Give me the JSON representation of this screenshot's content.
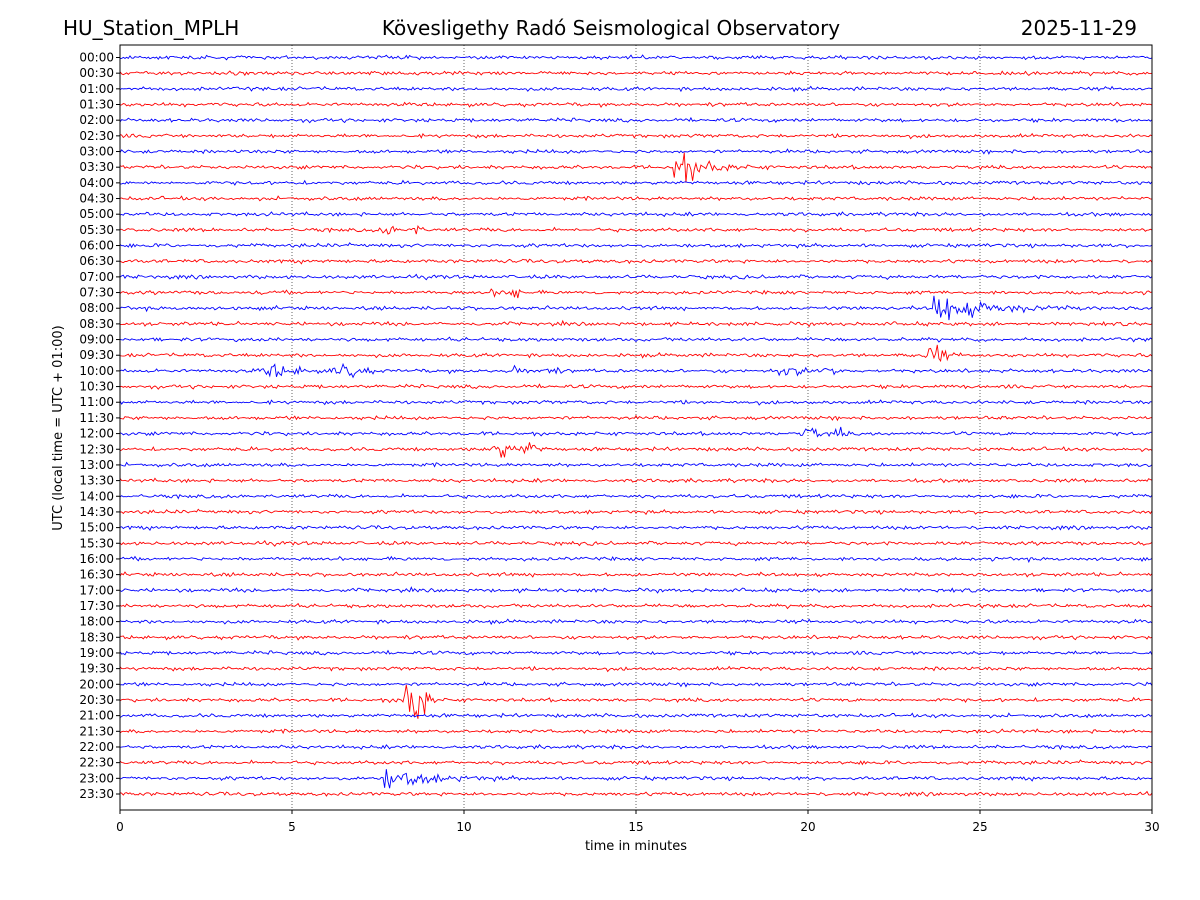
{
  "header": {
    "station": "HU_Station_MPLH",
    "observatory": "Kövesligethy Radó Seismological Observatory",
    "date": "2025-11-29"
  },
  "chart_data": {
    "type": "line",
    "title": "Kövesligethy Radó Seismological Observatory",
    "xlabel": "time in minutes",
    "ylabel": "UTC (local time = UTC + 01:00)",
    "xlim": [
      0,
      30
    ],
    "x_ticks": [
      0,
      5,
      10,
      15,
      20,
      25,
      30
    ],
    "grid": "vertical dotted lines at each x tick",
    "row_labels": [
      "00:00",
      "00:30",
      "01:00",
      "01:30",
      "02:00",
      "02:30",
      "03:00",
      "03:30",
      "04:00",
      "04:30",
      "05:00",
      "05:30",
      "06:00",
      "06:30",
      "07:00",
      "07:30",
      "08:00",
      "08:30",
      "09:00",
      "09:30",
      "10:00",
      "10:30",
      "11:00",
      "11:30",
      "12:00",
      "12:30",
      "13:00",
      "13:30",
      "14:00",
      "14:30",
      "15:00",
      "15:30",
      "16:00",
      "16:30",
      "17:00",
      "17:30",
      "18:00",
      "18:30",
      "19:00",
      "19:30",
      "20:00",
      "20:30",
      "21:00",
      "21:30",
      "22:00",
      "22:30",
      "23:00",
      "23:30"
    ],
    "colors": [
      "#0000ff",
      "#ff0000"
    ],
    "noise_amplitude": 1.0,
    "events": [
      {
        "row": 7,
        "minute": 16.1,
        "amplitude": 12,
        "duration": 1.8,
        "kind": "quake"
      },
      {
        "row": 11,
        "minute": 7.8,
        "amplitude": 3.5,
        "duration": 0.3,
        "kind": "burst"
      },
      {
        "row": 11,
        "minute": 8.6,
        "amplitude": 3.0,
        "duration": 0.3,
        "kind": "burst"
      },
      {
        "row": 15,
        "minute": 11.0,
        "amplitude": 2.5,
        "duration": 0.3,
        "kind": "burst"
      },
      {
        "row": 15,
        "minute": 11.5,
        "amplitude": 2.5,
        "duration": 0.3,
        "kind": "burst"
      },
      {
        "row": 16,
        "minute": 23.7,
        "amplitude": 9,
        "duration": 3.5,
        "kind": "quake"
      },
      {
        "row": 19,
        "minute": 23.7,
        "amplitude": 6,
        "duration": 0.5,
        "kind": "burst"
      },
      {
        "row": 20,
        "minute": 4.5,
        "amplitude": 3.5,
        "duration": 0.5,
        "kind": "burst"
      },
      {
        "row": 20,
        "minute": 5.3,
        "amplitude": 2.5,
        "duration": 0.4,
        "kind": "burst"
      },
      {
        "row": 20,
        "minute": 6.5,
        "amplitude": 3.5,
        "duration": 0.5,
        "kind": "burst"
      },
      {
        "row": 20,
        "minute": 7.0,
        "amplitude": 3.5,
        "duration": 0.4,
        "kind": "burst"
      },
      {
        "row": 20,
        "minute": 11.5,
        "amplitude": 2.5,
        "duration": 0.3,
        "kind": "burst"
      },
      {
        "row": 20,
        "minute": 12.5,
        "amplitude": 2.0,
        "duration": 0.4,
        "kind": "burst"
      },
      {
        "row": 20,
        "minute": 19.5,
        "amplitude": 2.0,
        "duration": 0.8,
        "kind": "burst"
      },
      {
        "row": 20,
        "minute": 20.6,
        "amplitude": 3.0,
        "duration": 0.4,
        "kind": "burst"
      },
      {
        "row": 24,
        "minute": 20.1,
        "amplitude": 3.5,
        "duration": 0.4,
        "kind": "burst"
      },
      {
        "row": 24,
        "minute": 20.9,
        "amplitude": 3.0,
        "duration": 0.3,
        "kind": "burst"
      },
      {
        "row": 25,
        "minute": 11.1,
        "amplitude": 4.5,
        "duration": 0.5,
        "kind": "burst"
      },
      {
        "row": 25,
        "minute": 11.9,
        "amplitude": 3.5,
        "duration": 0.5,
        "kind": "burst"
      },
      {
        "row": 41,
        "minute": 8.6,
        "amplitude": 14,
        "duration": 0.6,
        "kind": "burst"
      },
      {
        "row": 46,
        "minute": 7.7,
        "amplitude": 6,
        "duration": 3.0,
        "kind": "quake"
      }
    ]
  }
}
